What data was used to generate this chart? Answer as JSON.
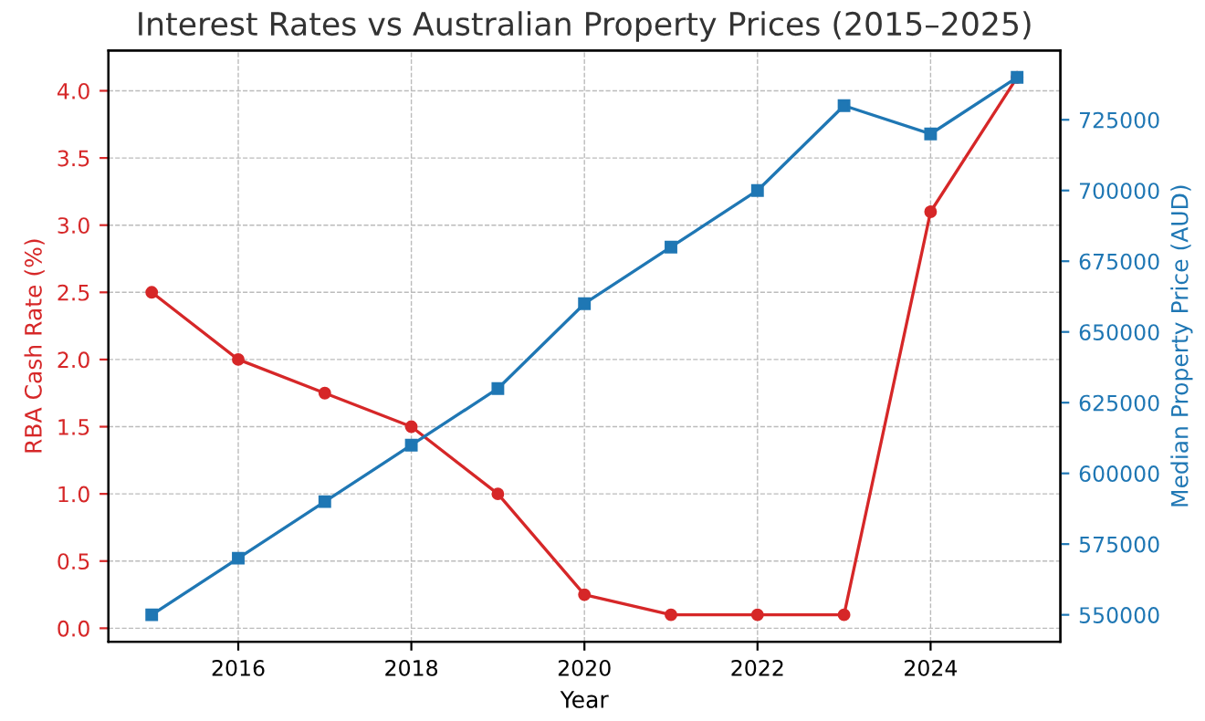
{
  "chart_data": {
    "type": "line",
    "title": "Interest Rates vs Australian Property Prices (2015–2025)",
    "xlabel": "Year",
    "ylabel": "RBA Cash Rate (%)",
    "y2label": "Median Property Price (AUD)",
    "x": [
      2015,
      2016,
      2017,
      2018,
      2019,
      2020,
      2021,
      2022,
      2023,
      2024,
      2025
    ],
    "series": [
      {
        "color": "#d62728",
        "marker": "circle",
        "values": [
          2.5,
          2.0,
          1.75,
          1.5,
          1.0,
          0.25,
          0.1,
          0.1,
          0.1,
          3.1,
          4.1
        ]
      },
      {
        "color": "#1f77b4",
        "marker": "square",
        "axis": "y2",
        "values": [
          550000,
          570000,
          590000,
          610000,
          630000,
          660000,
          680000,
          700000,
          730000,
          720000,
          740000
        ]
      }
    ],
    "xlim": [
      2014.5,
      2025.5
    ],
    "xticks": [
      2016,
      2018,
      2020,
      2022,
      2024
    ],
    "ylim": [
      -0.1,
      4.3
    ],
    "yticks": [
      {
        "value": 0,
        "label": "0.0"
      },
      {
        "value": 0.5,
        "label": "0.5"
      },
      {
        "value": 1,
        "label": "1.0"
      },
      {
        "value": 1.5,
        "label": "1.5"
      },
      {
        "value": 2,
        "label": "2.0"
      },
      {
        "value": 2.5,
        "label": "2.5"
      },
      {
        "value": 3,
        "label": "3.0"
      },
      {
        "value": 3.5,
        "label": "3.5"
      },
      {
        "value": 4,
        "label": "4.0"
      }
    ],
    "y2lim": [
      540500,
      749500
    ],
    "y2ticks": [
      550000,
      575000,
      600000,
      625000,
      650000,
      675000,
      700000,
      725000
    ],
    "grid": true,
    "legend": false,
    "line_style": "solid"
  }
}
